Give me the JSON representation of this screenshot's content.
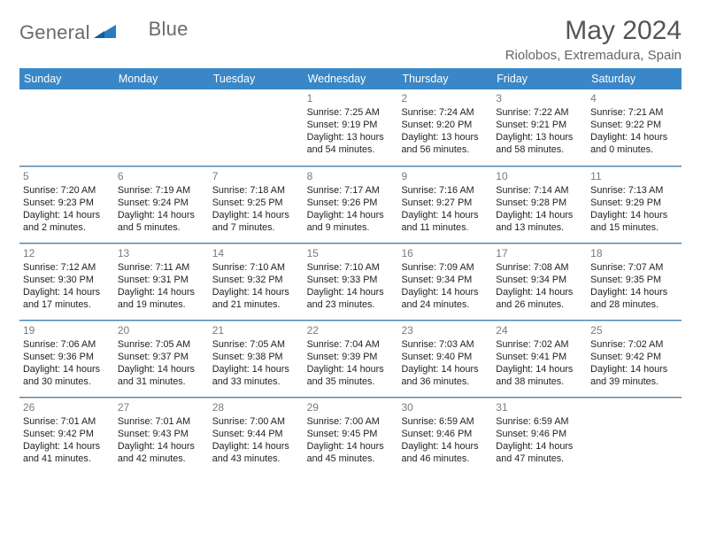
{
  "brand": {
    "general": "General",
    "blue": "Blue"
  },
  "title": "May 2024",
  "location": "Riolobos, Extremadura, Spain",
  "colors": {
    "header_bg": "#3a87c7",
    "weekday_text": "#ffffff",
    "title_color": "#555555",
    "body_text": "#222222",
    "daynum_color": "#7a7a7a",
    "cell_border": "#c7c7c7",
    "week_border": "#3a87c7",
    "background": "#ffffff",
    "logo_gray": "#6b6b6b",
    "logo_blue": "#2b7bbf"
  },
  "weekdays": [
    "Sunday",
    "Monday",
    "Tuesday",
    "Wednesday",
    "Thursday",
    "Friday",
    "Saturday"
  ],
  "weeks": [
    [
      {
        "blank": true
      },
      {
        "blank": true
      },
      {
        "blank": true
      },
      {
        "day": "1",
        "sunrise": "Sunrise: 7:25 AM",
        "sunset": "Sunset: 9:19 PM",
        "daylight": "Daylight: 13 hours and 54 minutes."
      },
      {
        "day": "2",
        "sunrise": "Sunrise: 7:24 AM",
        "sunset": "Sunset: 9:20 PM",
        "daylight": "Daylight: 13 hours and 56 minutes."
      },
      {
        "day": "3",
        "sunrise": "Sunrise: 7:22 AM",
        "sunset": "Sunset: 9:21 PM",
        "daylight": "Daylight: 13 hours and 58 minutes."
      },
      {
        "day": "4",
        "sunrise": "Sunrise: 7:21 AM",
        "sunset": "Sunset: 9:22 PM",
        "daylight": "Daylight: 14 hours and 0 minutes."
      }
    ],
    [
      {
        "day": "5",
        "sunrise": "Sunrise: 7:20 AM",
        "sunset": "Sunset: 9:23 PM",
        "daylight": "Daylight: 14 hours and 2 minutes."
      },
      {
        "day": "6",
        "sunrise": "Sunrise: 7:19 AM",
        "sunset": "Sunset: 9:24 PM",
        "daylight": "Daylight: 14 hours and 5 minutes."
      },
      {
        "day": "7",
        "sunrise": "Sunrise: 7:18 AM",
        "sunset": "Sunset: 9:25 PM",
        "daylight": "Daylight: 14 hours and 7 minutes."
      },
      {
        "day": "8",
        "sunrise": "Sunrise: 7:17 AM",
        "sunset": "Sunset: 9:26 PM",
        "daylight": "Daylight: 14 hours and 9 minutes."
      },
      {
        "day": "9",
        "sunrise": "Sunrise: 7:16 AM",
        "sunset": "Sunset: 9:27 PM",
        "daylight": "Daylight: 14 hours and 11 minutes."
      },
      {
        "day": "10",
        "sunrise": "Sunrise: 7:14 AM",
        "sunset": "Sunset: 9:28 PM",
        "daylight": "Daylight: 14 hours and 13 minutes."
      },
      {
        "day": "11",
        "sunrise": "Sunrise: 7:13 AM",
        "sunset": "Sunset: 9:29 PM",
        "daylight": "Daylight: 14 hours and 15 minutes."
      }
    ],
    [
      {
        "day": "12",
        "sunrise": "Sunrise: 7:12 AM",
        "sunset": "Sunset: 9:30 PM",
        "daylight": "Daylight: 14 hours and 17 minutes."
      },
      {
        "day": "13",
        "sunrise": "Sunrise: 7:11 AM",
        "sunset": "Sunset: 9:31 PM",
        "daylight": "Daylight: 14 hours and 19 minutes."
      },
      {
        "day": "14",
        "sunrise": "Sunrise: 7:10 AM",
        "sunset": "Sunset: 9:32 PM",
        "daylight": "Daylight: 14 hours and 21 minutes."
      },
      {
        "day": "15",
        "sunrise": "Sunrise: 7:10 AM",
        "sunset": "Sunset: 9:33 PM",
        "daylight": "Daylight: 14 hours and 23 minutes."
      },
      {
        "day": "16",
        "sunrise": "Sunrise: 7:09 AM",
        "sunset": "Sunset: 9:34 PM",
        "daylight": "Daylight: 14 hours and 24 minutes."
      },
      {
        "day": "17",
        "sunrise": "Sunrise: 7:08 AM",
        "sunset": "Sunset: 9:34 PM",
        "daylight": "Daylight: 14 hours and 26 minutes."
      },
      {
        "day": "18",
        "sunrise": "Sunrise: 7:07 AM",
        "sunset": "Sunset: 9:35 PM",
        "daylight": "Daylight: 14 hours and 28 minutes."
      }
    ],
    [
      {
        "day": "19",
        "sunrise": "Sunrise: 7:06 AM",
        "sunset": "Sunset: 9:36 PM",
        "daylight": "Daylight: 14 hours and 30 minutes."
      },
      {
        "day": "20",
        "sunrise": "Sunrise: 7:05 AM",
        "sunset": "Sunset: 9:37 PM",
        "daylight": "Daylight: 14 hours and 31 minutes."
      },
      {
        "day": "21",
        "sunrise": "Sunrise: 7:05 AM",
        "sunset": "Sunset: 9:38 PM",
        "daylight": "Daylight: 14 hours and 33 minutes."
      },
      {
        "day": "22",
        "sunrise": "Sunrise: 7:04 AM",
        "sunset": "Sunset: 9:39 PM",
        "daylight": "Daylight: 14 hours and 35 minutes."
      },
      {
        "day": "23",
        "sunrise": "Sunrise: 7:03 AM",
        "sunset": "Sunset: 9:40 PM",
        "daylight": "Daylight: 14 hours and 36 minutes."
      },
      {
        "day": "24",
        "sunrise": "Sunrise: 7:02 AM",
        "sunset": "Sunset: 9:41 PM",
        "daylight": "Daylight: 14 hours and 38 minutes."
      },
      {
        "day": "25",
        "sunrise": "Sunrise: 7:02 AM",
        "sunset": "Sunset: 9:42 PM",
        "daylight": "Daylight: 14 hours and 39 minutes."
      }
    ],
    [
      {
        "day": "26",
        "sunrise": "Sunrise: 7:01 AM",
        "sunset": "Sunset: 9:42 PM",
        "daylight": "Daylight: 14 hours and 41 minutes."
      },
      {
        "day": "27",
        "sunrise": "Sunrise: 7:01 AM",
        "sunset": "Sunset: 9:43 PM",
        "daylight": "Daylight: 14 hours and 42 minutes."
      },
      {
        "day": "28",
        "sunrise": "Sunrise: 7:00 AM",
        "sunset": "Sunset: 9:44 PM",
        "daylight": "Daylight: 14 hours and 43 minutes."
      },
      {
        "day": "29",
        "sunrise": "Sunrise: 7:00 AM",
        "sunset": "Sunset: 9:45 PM",
        "daylight": "Daylight: 14 hours and 45 minutes."
      },
      {
        "day": "30",
        "sunrise": "Sunrise: 6:59 AM",
        "sunset": "Sunset: 9:46 PM",
        "daylight": "Daylight: 14 hours and 46 minutes."
      },
      {
        "day": "31",
        "sunrise": "Sunrise: 6:59 AM",
        "sunset": "Sunset: 9:46 PM",
        "daylight": "Daylight: 14 hours and 47 minutes."
      },
      {
        "blank": true
      }
    ]
  ]
}
